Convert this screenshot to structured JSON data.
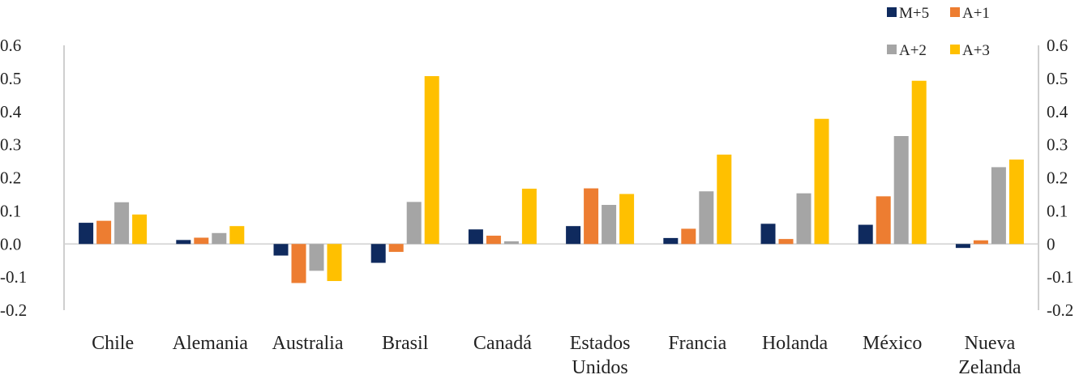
{
  "chart_data": {
    "type": "bar",
    "title": "",
    "xlabel": "",
    "ylabel": "",
    "categories": [
      [
        "Chile"
      ],
      [
        "Alemania"
      ],
      [
        "Australia"
      ],
      [
        "Brasil"
      ],
      [
        "Canadá"
      ],
      [
        "Estados",
        "Unidos"
      ],
      [
        "Francia"
      ],
      [
        "Holanda"
      ],
      [
        "México"
      ],
      [
        "Nueva",
        "Zelanda"
      ]
    ],
    "series": [
      {
        "name": "M+5",
        "color": "#0f2a5e",
        "values": [
          0.064,
          0.012,
          -0.035,
          -0.057,
          0.044,
          0.054,
          0.018,
          0.061,
          0.058,
          -0.012
        ]
      },
      {
        "name": "A+1",
        "color": "#ed7d31",
        "values": [
          0.07,
          0.019,
          -0.118,
          -0.024,
          0.025,
          0.168,
          0.046,
          0.015,
          0.144,
          0.011
        ]
      },
      {
        "name": "A+2",
        "color": "#a5a5a5",
        "values": [
          0.126,
          0.033,
          -0.081,
          0.127,
          0.008,
          0.118,
          0.159,
          0.153,
          0.326,
          0.232
        ]
      },
      {
        "name": "A+3",
        "color": "#ffc000",
        "values": [
          0.089,
          0.054,
          -0.112,
          0.507,
          0.167,
          0.151,
          0.27,
          0.378,
          0.493,
          0.255
        ]
      }
    ],
    "ylim": [
      -0.2,
      0.6
    ],
    "y_ticks_left": [
      "-0.2",
      "-0.1",
      "0.0",
      "0.1",
      "0.2",
      "0.3",
      "0.4",
      "0.5",
      "0.6"
    ],
    "y_ticks_right": [
      "-0.2",
      "-0.1",
      "0",
      "0.1",
      "0.2",
      "0.3",
      "0.4",
      "0.5",
      "0.6"
    ],
    "y_tick_values": [
      -0.2,
      -0.1,
      0,
      0.1,
      0.2,
      0.3,
      0.4,
      0.5,
      0.6
    ],
    "grid": false,
    "legend_position": "top-right"
  }
}
